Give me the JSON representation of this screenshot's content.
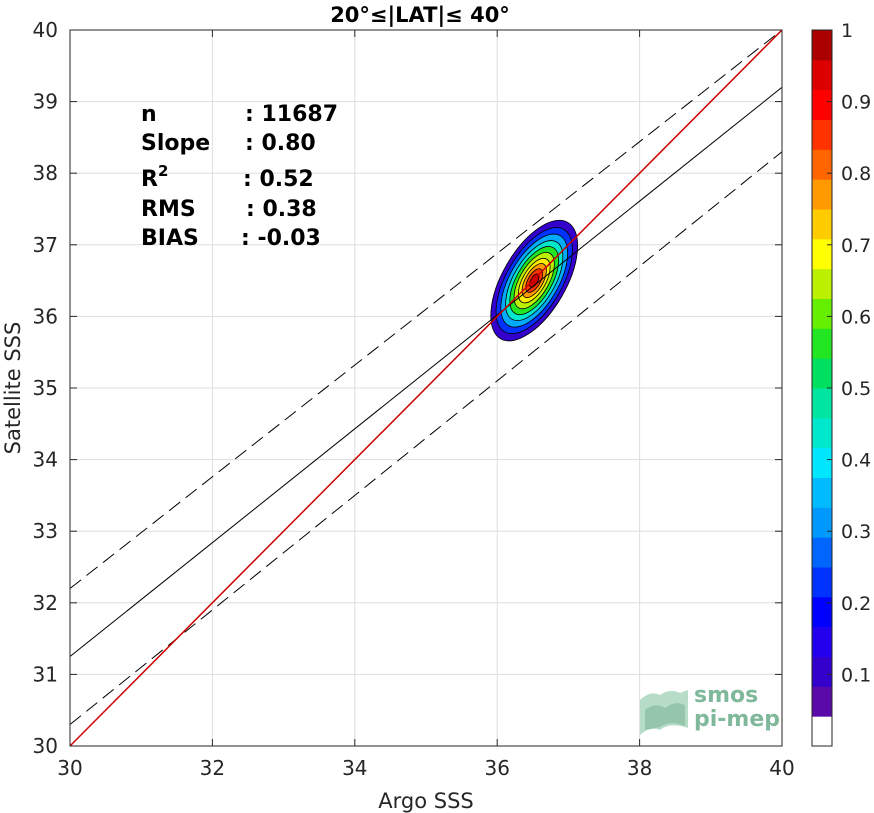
{
  "chart_data": {
    "type": "scatter",
    "title": "20°≤|LAT|≤ 40°",
    "xlabel": "Argo SSS",
    "ylabel": "Satellite SSS",
    "xlim": [
      30,
      40
    ],
    "ylim": [
      30,
      40
    ],
    "xticks": [
      "30",
      "32",
      "34",
      "36",
      "38",
      "40"
    ],
    "yticks": [
      "30",
      "31",
      "32",
      "33",
      "34",
      "35",
      "36",
      "37",
      "38",
      "39",
      "40"
    ],
    "grid": true,
    "stats": [
      {
        "label": "n",
        "value": ": 11687"
      },
      {
        "label": "Slope",
        "value": ": 0.80"
      },
      {
        "label": "R",
        "superscript": "2",
        "value": ": 0.52"
      },
      {
        "label": "RMS",
        "value": ": 0.38"
      },
      {
        "label": "BIAS",
        "value": ": -0.03"
      }
    ],
    "lines": {
      "identity": {
        "slope": 1.0,
        "intercept": 0.0,
        "color": "#cc0000"
      },
      "regression": {
        "x": [
          30,
          40
        ],
        "y": [
          31.25,
          39.2
        ],
        "color": "#000000"
      },
      "upper_bound": {
        "x": [
          30,
          40
        ],
        "y": [
          32.2,
          40.0
        ],
        "dash": true
      },
      "lower_bound": {
        "x": [
          30,
          40
        ],
        "y": [
          30.3,
          38.3
        ],
        "dash": true
      }
    },
    "density": {
      "center": [
        36.52,
        36.5
      ],
      "levels": [
        {
          "level": 0.1,
          "rx": 0.72,
          "ry": 0.92,
          "color": "#3300cc"
        },
        {
          "level": 0.2,
          "rx": 0.63,
          "ry": 0.81,
          "color": "#0033ff"
        },
        {
          "level": 0.3,
          "rx": 0.55,
          "ry": 0.71,
          "color": "#00aaff"
        },
        {
          "level": 0.4,
          "rx": 0.47,
          "ry": 0.61,
          "color": "#00e8cc"
        },
        {
          "level": 0.5,
          "rx": 0.4,
          "ry": 0.52,
          "color": "#22e622"
        },
        {
          "level": 0.6,
          "rx": 0.33,
          "ry": 0.43,
          "color": "#bbf000"
        },
        {
          "level": 0.7,
          "rx": 0.26,
          "ry": 0.34,
          "color": "#ffee00"
        },
        {
          "level": 0.8,
          "rx": 0.2,
          "ry": 0.26,
          "color": "#ff9900"
        },
        {
          "level": 0.9,
          "rx": 0.14,
          "ry": 0.18,
          "color": "#ff3300"
        },
        {
          "level": 1.0,
          "rx": 0.08,
          "ry": 0.1,
          "color": "#cc0000"
        }
      ]
    },
    "colorbar": {
      "ticks": [
        "0.1",
        "0.2",
        "0.3",
        "0.4",
        "0.5",
        "0.6",
        "0.7",
        "0.8",
        "0.9",
        "1"
      ],
      "tick_values": [
        0.1,
        0.2,
        0.3,
        0.4,
        0.5,
        0.6,
        0.7,
        0.8,
        0.9,
        1.0
      ],
      "range": [
        0.0,
        1.0
      ],
      "colors": [
        "#ffffff",
        "#5a0aa8",
        "#3300cc",
        "#2200ee",
        "#0000ff",
        "#0033ff",
        "#0066ff",
        "#0099ff",
        "#00bbff",
        "#00e6ff",
        "#00e8cc",
        "#00e6a0",
        "#00e060",
        "#22e622",
        "#66ee00",
        "#bbf000",
        "#ffff00",
        "#ffcc00",
        "#ff9900",
        "#ff6600",
        "#ff3300",
        "#ff0000",
        "#dd0000",
        "#aa0000"
      ]
    }
  },
  "logo": {
    "line1": "smos",
    "line2": "pi-mep"
  }
}
